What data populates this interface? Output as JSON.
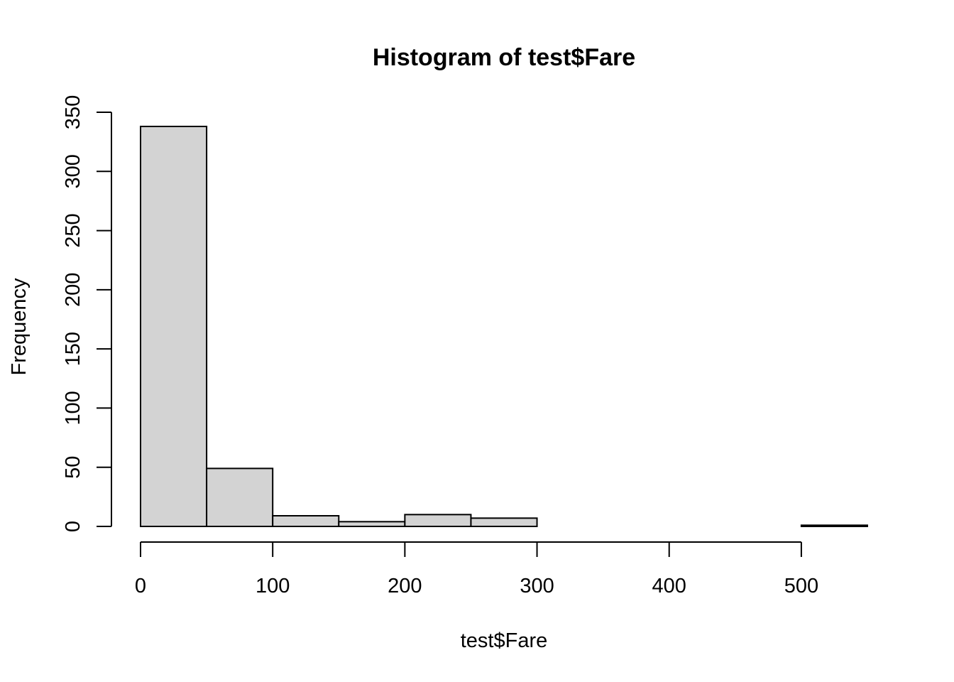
{
  "chart_data": {
    "type": "bar",
    "subtype": "histogram",
    "title": "Histogram of test$Fare",
    "xlabel": "test$Fare",
    "ylabel": "Frequency",
    "bins": [
      {
        "start": 0,
        "end": 50,
        "count": 338
      },
      {
        "start": 50,
        "end": 100,
        "count": 49
      },
      {
        "start": 100,
        "end": 150,
        "count": 9
      },
      {
        "start": 150,
        "end": 200,
        "count": 4
      },
      {
        "start": 200,
        "end": 250,
        "count": 10
      },
      {
        "start": 250,
        "end": 300,
        "count": 7
      },
      {
        "start": 300,
        "end": 350,
        "count": 0
      },
      {
        "start": 350,
        "end": 400,
        "count": 0
      },
      {
        "start": 400,
        "end": 450,
        "count": 0
      },
      {
        "start": 450,
        "end": 500,
        "count": 0
      },
      {
        "start": 500,
        "end": 550,
        "count": 1
      }
    ],
    "xticks": [
      0,
      100,
      200,
      300,
      400,
      500
    ],
    "yticks": [
      0,
      50,
      100,
      150,
      200,
      250,
      300,
      350
    ],
    "xlim": [
      0,
      550
    ],
    "ylim": [
      0,
      350
    ],
    "bar_fill": "#d3d3d3",
    "bar_stroke": "#000000",
    "grid": false,
    "legend": "none"
  }
}
